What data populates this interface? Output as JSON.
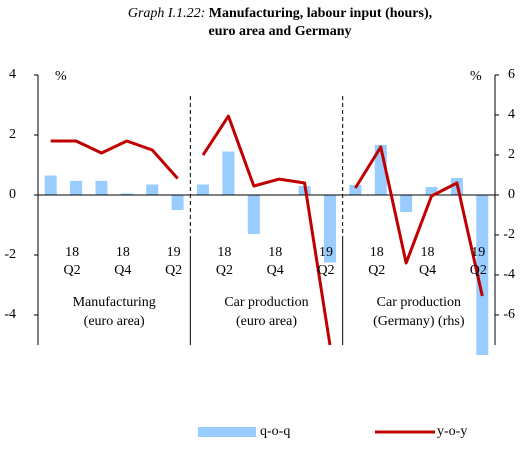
{
  "chart_data": {
    "type": "bar_line",
    "title_prefix": "Graph I.1.22:",
    "title": [
      "Manufacturing, labour input (hours),",
      "euro area and Germany"
    ],
    "y_unit": "%",
    "y2_unit": "%",
    "ylim": [
      -4,
      4
    ],
    "yticks": [
      -4,
      -2,
      0,
      2,
      4
    ],
    "y2lim": [
      -6,
      6
    ],
    "y2ticks": [
      -6,
      -4,
      -2,
      0,
      2,
      4,
      6
    ],
    "categories": [
      null,
      [
        "18",
        "Q2"
      ],
      null,
      [
        "18",
        "Q4"
      ],
      null,
      [
        "19",
        "Q2"
      ]
    ],
    "groups": [
      {
        "label": [
          "Manufacturing",
          "(euro area)"
        ],
        "axis": "y"
      },
      {
        "label": [
          "Car production",
          "(euro area)"
        ],
        "axis": "y"
      },
      {
        "label": [
          "Car production",
          "(Germany) (rhs)"
        ],
        "axis": "y2"
      }
    ],
    "series": [
      {
        "name": "q-o-q",
        "color": "#99ccff",
        "type": "bar",
        "values": [
          [
            0.65,
            0.47,
            0.47,
            0.05,
            0.35,
            -0.5
          ],
          [
            0.35,
            1.45,
            -1.3,
            0,
            0.3,
            -2.25
          ],
          [
            0.5,
            2.5,
            -0.85,
            0.4,
            0.85,
            -8.0
          ]
        ]
      },
      {
        "name": "y-o-y",
        "color": "#c00000",
        "type": "line",
        "values": [
          [
            1.8,
            1.8,
            1.4,
            1.8,
            1.5,
            0.55
          ],
          [
            1.33,
            2.63,
            0.3,
            0.53,
            0.4,
            -5.0
          ],
          [
            0.35,
            2.4,
            -3.4,
            -0.05,
            0.6,
            -5.05
          ]
        ]
      }
    ]
  }
}
